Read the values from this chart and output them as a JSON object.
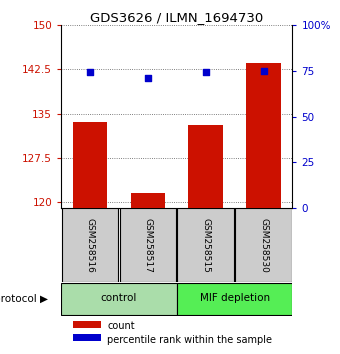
{
  "title": "GDS3626 / ILMN_1694730",
  "samples": [
    "GSM258516",
    "GSM258517",
    "GSM258515",
    "GSM258530"
  ],
  "bar_values": [
    133.5,
    121.5,
    133.0,
    143.5
  ],
  "percentile_values": [
    74,
    71,
    74,
    75
  ],
  "groups": [
    {
      "label": "control",
      "color": "#aaddaa"
    },
    {
      "label": "MIF depletion",
      "color": "#55ee55"
    }
  ],
  "bar_color": "#cc1100",
  "percentile_color": "#0000cc",
  "ylim_left": [
    119,
    150
  ],
  "ylim_right": [
    0,
    100
  ],
  "yticks_left": [
    120,
    127.5,
    135,
    142.5,
    150
  ],
  "yticks_right": [
    0,
    25,
    50,
    75,
    100
  ],
  "ytick_labels_right": [
    "0",
    "25",
    "50",
    "75",
    "100%"
  ],
  "bar_width": 0.6,
  "background_color": "#ffffff",
  "plot_bg": "#ffffff",
  "grid_color": "#555555",
  "sample_box_color": "#cccccc",
  "protocol_label": "protocol",
  "legend_count_label": "count",
  "legend_pct_label": "percentile rank within the sample"
}
